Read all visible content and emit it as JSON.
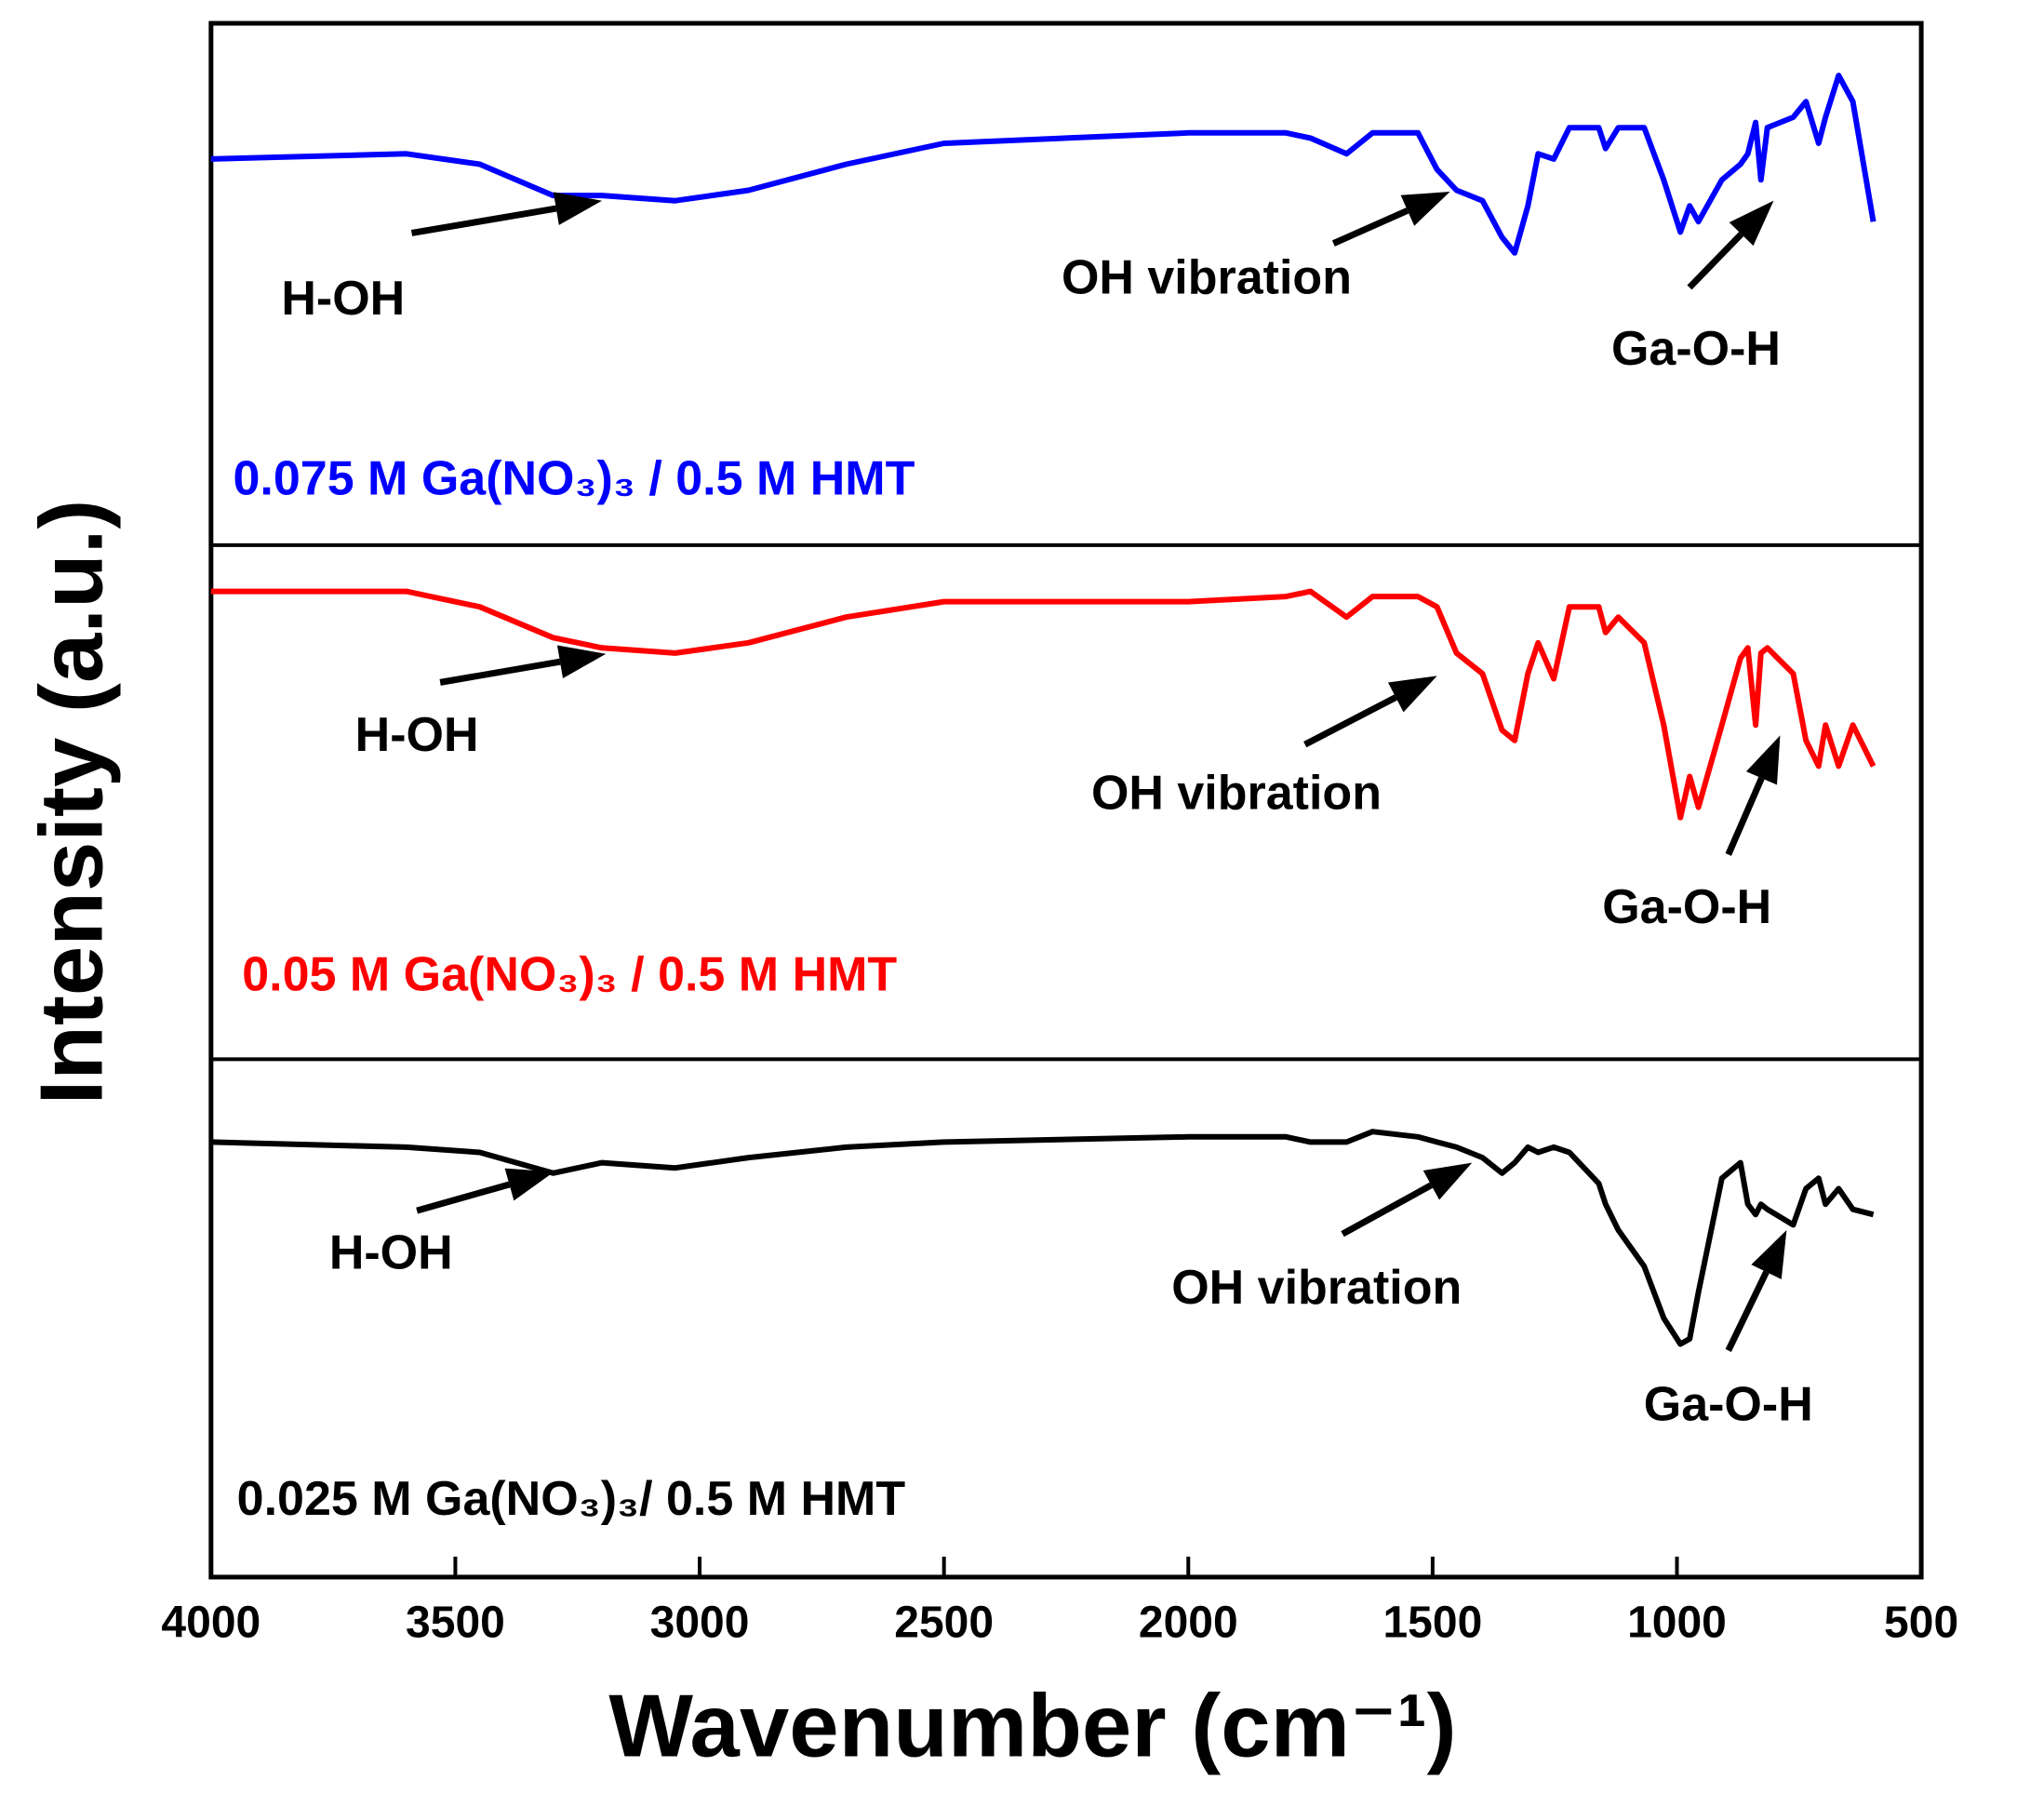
{
  "chart_data": {
    "type": "line",
    "xlabel": "Wavenumber (cm⁻¹)",
    "ylabel": "Intensity (a.u.)",
    "xlim": [
      4000,
      500
    ],
    "xticks": [
      4000,
      3500,
      3000,
      2500,
      2000,
      1500,
      1000,
      500
    ],
    "ylim": [
      0,
      100
    ],
    "x": [
      4000,
      3600,
      3450,
      3300,
      3200,
      3050,
      2900,
      2700,
      2500,
      2000,
      1800,
      1750,
      1676,
      1623,
      1530,
      1491,
      1451,
      1398,
      1358,
      1332,
      1305,
      1284,
      1252,
      1220,
      1160,
      1146,
      1120,
      1067,
      1027,
      993,
      974,
      956,
      908,
      870,
      855,
      839,
      828,
      815,
      762,
      736,
      710,
      696,
      669,
      640,
      598
    ],
    "series": [
      {
        "name": "0.075 M Ga(NO₃)₃ / 0.5 M HMT",
        "color": "#0000ff",
        "annotations": [
          "H-OH",
          "OH vibration",
          "Ga-O-H"
        ],
        "values": [
          74,
          75,
          73,
          67,
          67,
          66,
          68,
          73,
          77,
          79,
          79,
          78,
          75,
          79,
          79,
          72,
          68,
          66,
          59,
          56,
          65,
          75,
          74,
          80,
          80,
          76,
          80,
          80,
          70,
          60,
          65,
          62,
          70,
          73,
          75,
          81,
          70,
          80,
          82,
          85,
          77,
          82,
          90,
          85,
          62
        ]
      },
      {
        "name": "0.05 M Ga(NO₃)₃ / 0.5 M HMT",
        "color": "#ff0000",
        "annotations": [
          "H-OH",
          "OH vibration",
          "Ga-O-H"
        ],
        "values": [
          91,
          91,
          88,
          82,
          80,
          79,
          81,
          86,
          89,
          89,
          90,
          91,
          86,
          90,
          90,
          88,
          79,
          75,
          64,
          62,
          75,
          81,
          74,
          88,
          88,
          83,
          86,
          81,
          65,
          47,
          55,
          49,
          65,
          78,
          80,
          65,
          79,
          80,
          75,
          62,
          57,
          65,
          57,
          65,
          57
        ]
      },
      {
        "name": "0.025 M Ga(NO₃)₃/  0.5 M HMT",
        "color": "#000000",
        "annotations": [
          "H-OH",
          "OH vibration",
          "Ga-O-H"
        ],
        "values": [
          84,
          83,
          82,
          78,
          80,
          79,
          81,
          83,
          84,
          85,
          85,
          84,
          84,
          86,
          85,
          84,
          83,
          81,
          78,
          80,
          83,
          82,
          83,
          82,
          76,
          72,
          67,
          60,
          50,
          45,
          46,
          55,
          77,
          80,
          72,
          70,
          72,
          71,
          68,
          75,
          77,
          72,
          75,
          71,
          70
        ]
      }
    ]
  }
}
